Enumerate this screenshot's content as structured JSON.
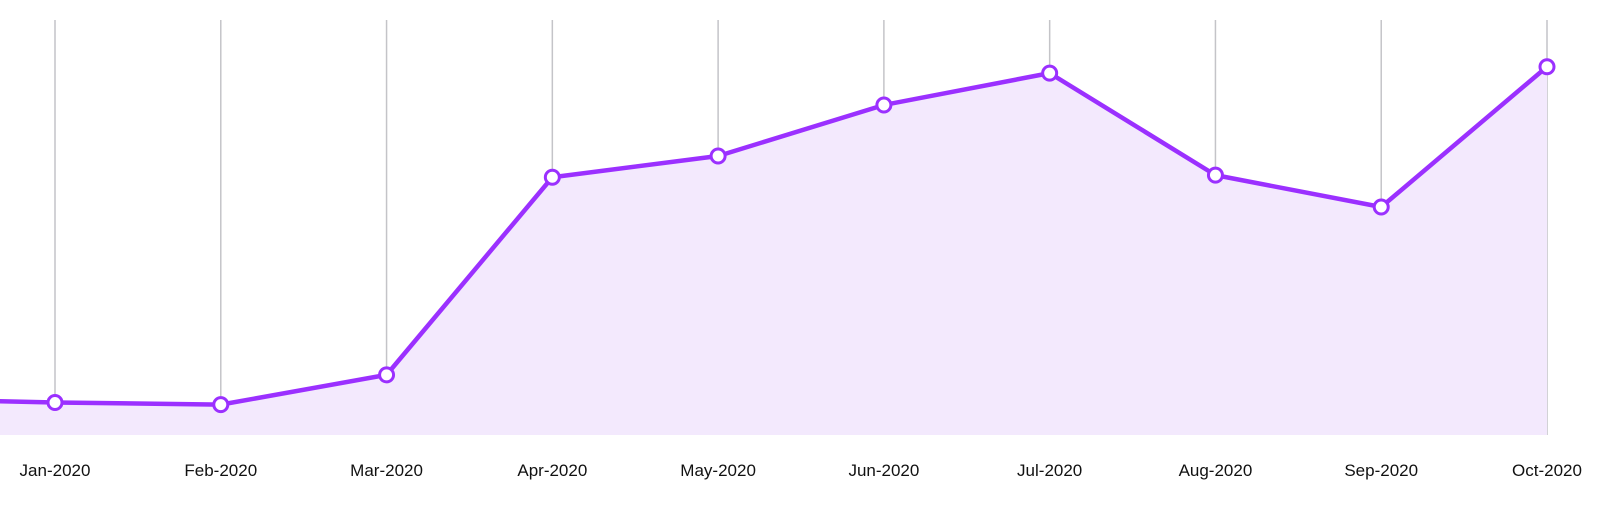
{
  "chart_data": {
    "type": "area",
    "x": [
      "Jan-2020",
      "Feb-2020",
      "Mar-2020",
      "Apr-2020",
      "May-2020",
      "Jun-2020",
      "Jul-2020",
      "Aug-2020",
      "Sep-2020",
      "Oct-2020"
    ],
    "values": [
      10,
      9.5,
      16.5,
      63,
      68,
      80,
      87.5,
      63.5,
      56,
      89
    ],
    "title": "",
    "xlabel": "",
    "ylabel": "",
    "grid": "vertical",
    "legend": "none"
  },
  "colors": {
    "line": "#9b30ff",
    "area": "#f3e9fd",
    "grid": "#c4c4c8",
    "text": "#111111"
  }
}
